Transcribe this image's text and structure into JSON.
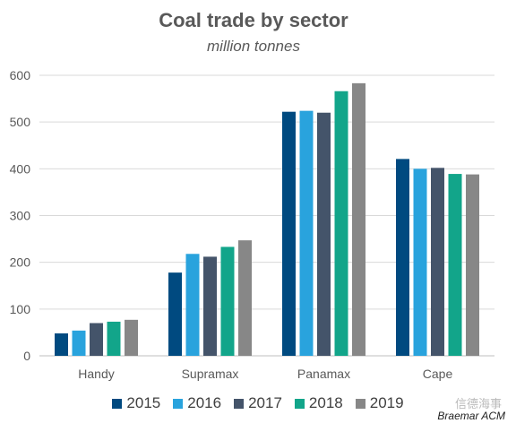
{
  "chart_data": {
    "type": "bar",
    "title": "Coal trade by sector",
    "subtitle": "million tonnes",
    "categories": [
      "Handy",
      "Supramax",
      "Panamax",
      "Cape"
    ],
    "ylim": [
      0,
      600
    ],
    "yticks": [
      "0",
      "100",
      "200",
      "300",
      "400",
      "500",
      "600"
    ],
    "grid": true,
    "legend_position": "bottom",
    "series": [
      {
        "name": "2015",
        "color": "#004a80",
        "values": [
          48,
          178,
          522,
          421
        ]
      },
      {
        "name": "2016",
        "color": "#29a3dd",
        "values": [
          54,
          218,
          524,
          400
        ]
      },
      {
        "name": "2017",
        "color": "#44546a",
        "values": [
          70,
          212,
          520,
          402
        ]
      },
      {
        "name": "2018",
        "color": "#12a58a",
        "values": [
          73,
          233,
          566,
          389
        ]
      },
      {
        "name": "2019",
        "color": "#878787",
        "values": [
          77,
          247,
          583,
          388
        ]
      }
    ]
  },
  "source": "Braemar ACM",
  "watermark": "信德海事"
}
